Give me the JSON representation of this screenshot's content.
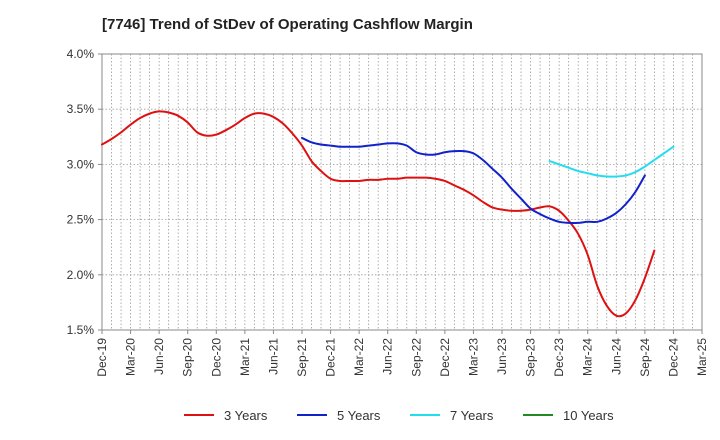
{
  "chart_data": {
    "type": "line",
    "title": "[7746]  Trend of StDev of Operating Cashflow Margin",
    "xlabel": "",
    "ylabel": "",
    "ylim": [
      1.5,
      4.0
    ],
    "yticks": [
      1.5,
      2.0,
      2.5,
      3.0,
      3.5,
      4.0
    ],
    "ytick_labels": [
      "1.5%",
      "2.0%",
      "2.5%",
      "3.0%",
      "3.5%",
      "4.0%"
    ],
    "x_tick_labels": [
      "Dec-19",
      "Mar-20",
      "Jun-20",
      "Sep-20",
      "Dec-20",
      "Mar-21",
      "Jun-21",
      "Sep-21",
      "Dec-21",
      "Mar-22",
      "Jun-22",
      "Sep-22",
      "Dec-22",
      "Mar-23",
      "Jun-23",
      "Sep-23",
      "Dec-23",
      "Mar-24",
      "Jun-24",
      "Sep-24",
      "Dec-24",
      "Mar-25"
    ],
    "x_count": 64,
    "grid": true,
    "legend_position": "bottom",
    "series": [
      {
        "name": "3 Years",
        "color": "#dd1111",
        "start_index": 0,
        "values": [
          3.18,
          3.23,
          3.29,
          3.36,
          3.42,
          3.46,
          3.48,
          3.47,
          3.44,
          3.38,
          3.29,
          3.26,
          3.27,
          3.31,
          3.36,
          3.42,
          3.46,
          3.46,
          3.43,
          3.37,
          3.28,
          3.17,
          3.03,
          2.94,
          2.87,
          2.85,
          2.85,
          2.85,
          2.86,
          2.86,
          2.87,
          2.87,
          2.88,
          2.88,
          2.88,
          2.87,
          2.85,
          2.81,
          2.77,
          2.72,
          2.66,
          2.61,
          2.59,
          2.58,
          2.58,
          2.59,
          2.61,
          2.62,
          2.58,
          2.49,
          2.37,
          2.18,
          1.9,
          1.72,
          1.63,
          1.65,
          1.77,
          1.97,
          2.22
        ]
      },
      {
        "name": "5 Years",
        "color": "#1122cc",
        "start_index": 21,
        "values": [
          3.24,
          3.2,
          3.18,
          3.17,
          3.16,
          3.16,
          3.16,
          3.17,
          3.18,
          3.19,
          3.19,
          3.17,
          3.11,
          3.09,
          3.09,
          3.11,
          3.12,
          3.12,
          3.1,
          3.04,
          2.96,
          2.88,
          2.78,
          2.69,
          2.6,
          2.55,
          2.51,
          2.48,
          2.47,
          2.47,
          2.48,
          2.48,
          2.51,
          2.56,
          2.64,
          2.75,
          2.9
        ]
      },
      {
        "name": "7 Years",
        "color": "#22ddee",
        "start_index": 47,
        "values": [
          3.03,
          3.0,
          2.97,
          2.94,
          2.92,
          2.9,
          2.89,
          2.89,
          2.9,
          2.93,
          2.98,
          3.04,
          3.1,
          3.16
        ]
      },
      {
        "name": "10 Years",
        "color": "#228822",
        "start_index": 0,
        "values": []
      }
    ]
  }
}
